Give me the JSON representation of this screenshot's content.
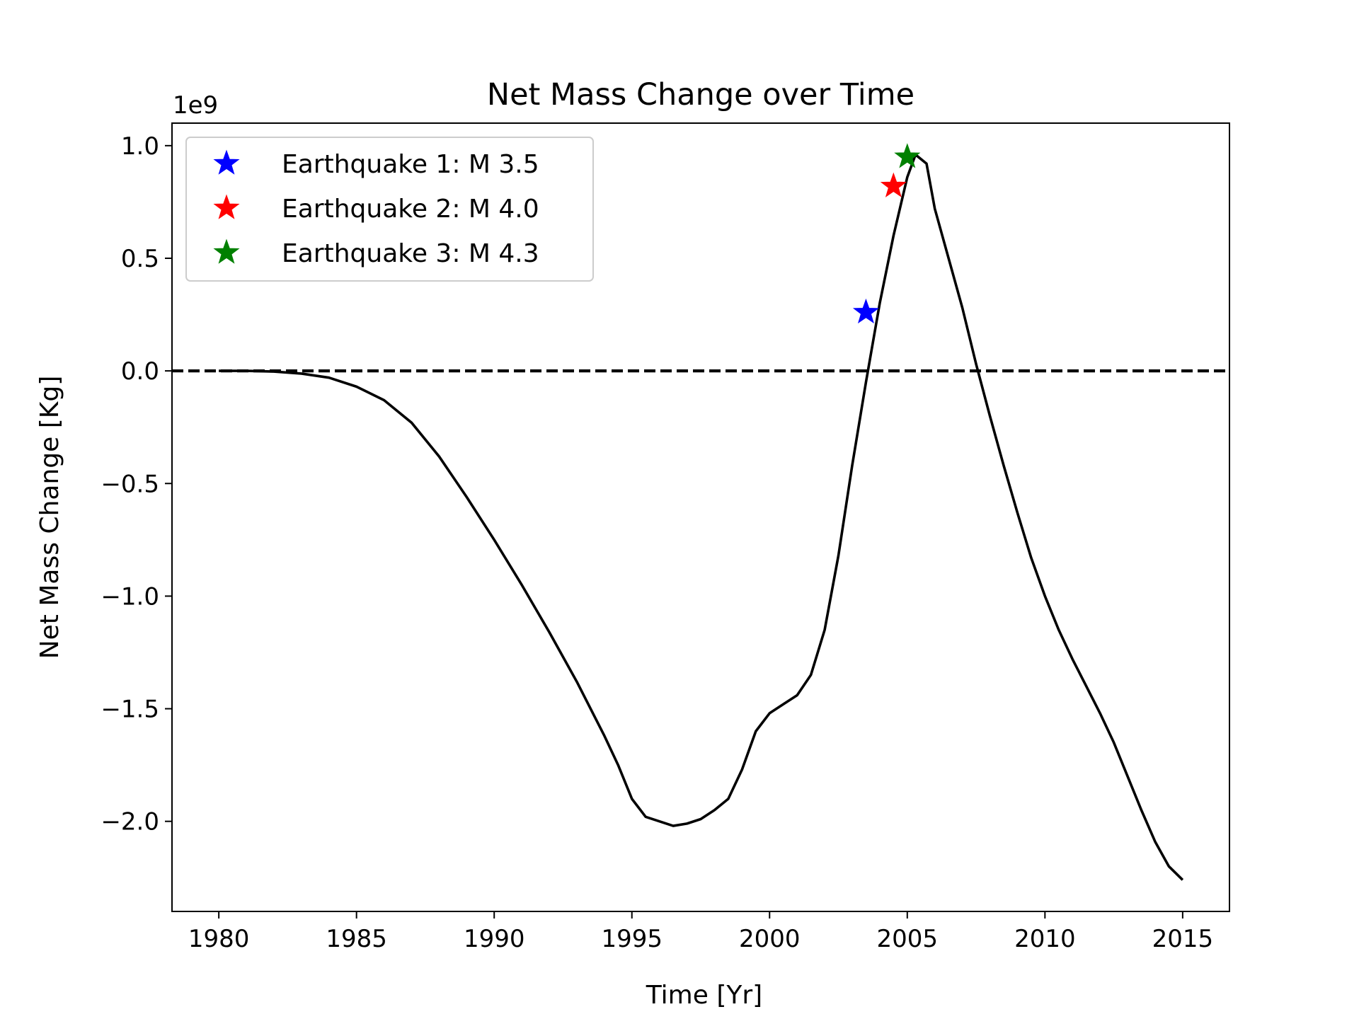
{
  "chart_data": {
    "type": "line",
    "title": "Net Mass Change over Time",
    "xlabel": "Time [Yr]",
    "ylabel": "Net Mass Change [Kg]",
    "y_offset_label": "1e9",
    "y_scale_factor": 1000000000,
    "xlim": [
      1978.3,
      2016.7
    ],
    "ylim": [
      -2.4,
      1.1
    ],
    "x_ticks": [
      1980,
      1985,
      1990,
      1995,
      2000,
      2005,
      2010,
      2015
    ],
    "x_tick_labels": [
      "1980",
      "1985",
      "1990",
      "1995",
      "2000",
      "2005",
      "2010",
      "2015"
    ],
    "y_ticks": [
      1.0,
      0.5,
      0.0,
      -0.5,
      -1.0,
      -1.5,
      -2.0
    ],
    "y_tick_labels": [
      "1.0",
      "0.5",
      "0.0",
      "−0.5",
      "−1.0",
      "−1.5",
      "−2.0"
    ],
    "grid": false,
    "legend_position": "upper-left",
    "series": [
      {
        "color": "#000000",
        "style": "solid",
        "x": [
          1980,
          1981,
          1982,
          1983,
          1984,
          1985,
          1986,
          1987,
          1988,
          1989,
          1990,
          1991,
          1992,
          1993,
          1994,
          1994.5,
          1995,
          1995.5,
          1996,
          1996.5,
          1997,
          1997.5,
          1998,
          1998.5,
          1999,
          1999.5,
          2000,
          2000.5,
          2001,
          2001.5,
          2002,
          2002.5,
          2003,
          2003.5,
          2004,
          2004.5,
          2005,
          2005.3,
          2005.7,
          2006,
          2006.5,
          2007,
          2007.5,
          2008,
          2008.5,
          2009,
          2009.5,
          2010,
          2010.5,
          2011,
          2011.5,
          2012,
          2012.5,
          2013,
          2013.5,
          2014,
          2014.5,
          2015
        ],
        "y": [
          0.0,
          0.0,
          -0.003,
          -0.012,
          -0.03,
          -0.07,
          -0.13,
          -0.23,
          -0.38,
          -0.56,
          -0.75,
          -0.95,
          -1.16,
          -1.38,
          -1.62,
          -1.75,
          -1.9,
          -1.98,
          -2.0,
          -2.02,
          -2.01,
          -1.99,
          -1.95,
          -1.9,
          -1.77,
          -1.6,
          -1.52,
          -1.48,
          -1.44,
          -1.35,
          -1.15,
          -0.82,
          -0.42,
          -0.05,
          0.3,
          0.6,
          0.86,
          0.96,
          0.92,
          0.72,
          0.5,
          0.28,
          0.03,
          -0.2,
          -0.42,
          -0.63,
          -0.83,
          -1.0,
          -1.15,
          -1.28,
          -1.4,
          -1.52,
          -1.65,
          -1.8,
          -1.95,
          -2.09,
          -2.2,
          -2.26
        ]
      },
      {
        "color": "#000000",
        "style": "dashed",
        "x": [
          1978.3,
          2016.7
        ],
        "y": [
          0,
          0
        ]
      }
    ],
    "markers": [
      {
        "label": "Earthquake 1: M 3.5",
        "color": "#0000ff",
        "x": 2003.5,
        "y": 0.26
      },
      {
        "label": "Earthquake 2: M 4.0",
        "color": "#ff0000",
        "x": 2004.5,
        "y": 0.82
      },
      {
        "label": "Earthquake 3: M 4.3",
        "color": "#008000",
        "x": 2005.0,
        "y": 0.95
      }
    ]
  }
}
